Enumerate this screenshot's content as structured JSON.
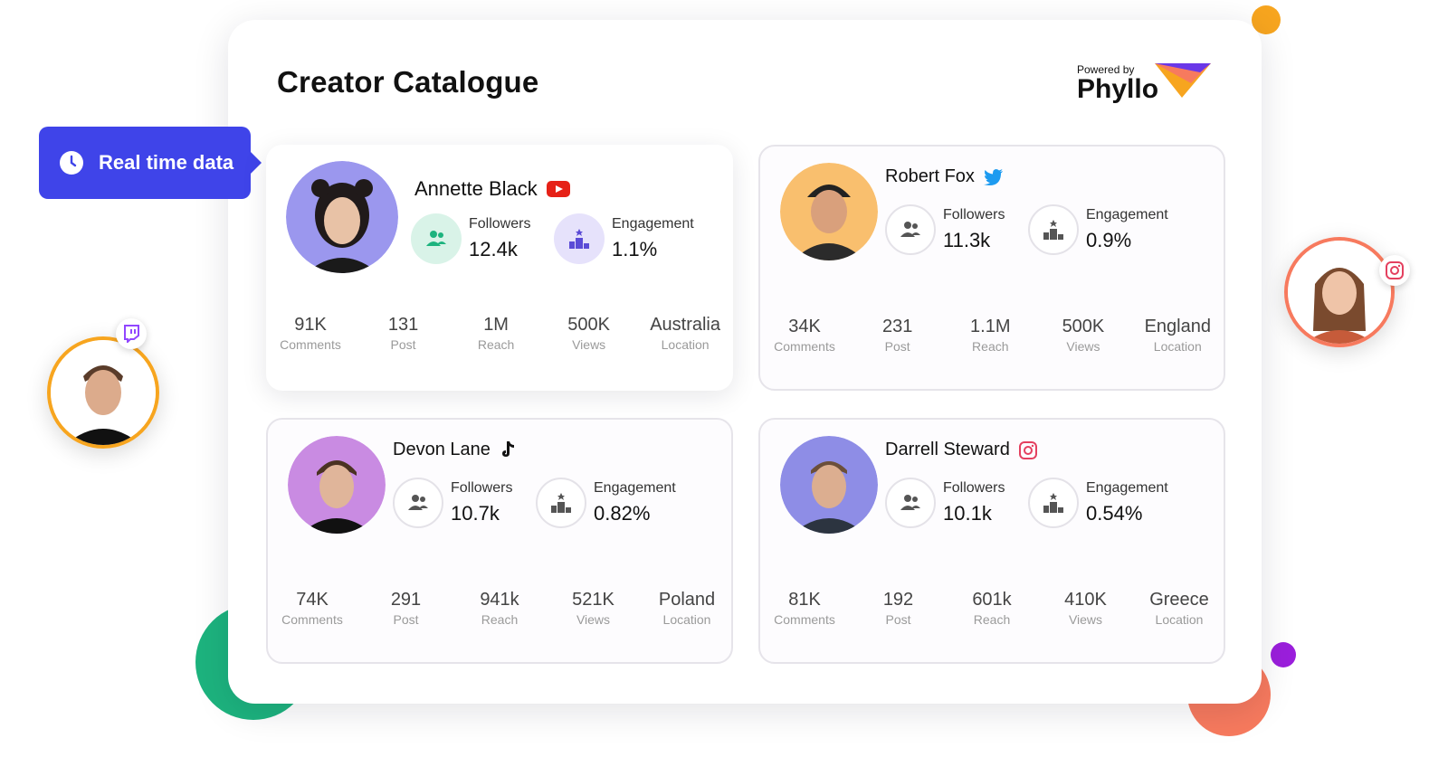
{
  "page": {
    "title": "Creator Catalogue"
  },
  "brand": {
    "powered_by": "Powered by",
    "name": "Phyllo"
  },
  "badge": {
    "label": "Real time data"
  },
  "creators": [
    {
      "name": "Annette Black",
      "platform": "youtube",
      "followers_label": "Followers",
      "followers": "12.4k",
      "engagement_label": "Engagement",
      "engagement": "1.1%",
      "stats": [
        {
          "value": "91K",
          "label": "Comments"
        },
        {
          "value": "131",
          "label": "Post"
        },
        {
          "value": "1M",
          "label": "Reach"
        },
        {
          "value": "500K",
          "label": "Views"
        },
        {
          "value": "Australia",
          "label": "Location"
        }
      ]
    },
    {
      "name": "Robert Fox",
      "platform": "twitter",
      "followers_label": "Followers",
      "followers": "11.3k",
      "engagement_label": "Engagement",
      "engagement": "0.9%",
      "stats": [
        {
          "value": "34K",
          "label": "Comments"
        },
        {
          "value": "231",
          "label": "Post"
        },
        {
          "value": "1.1M",
          "label": "Reach"
        },
        {
          "value": "500K",
          "label": "Views"
        },
        {
          "value": "England",
          "label": "Location"
        }
      ]
    },
    {
      "name": "Devon Lane",
      "platform": "tiktok",
      "followers_label": "Followers",
      "followers": "10.7k",
      "engagement_label": "Engagement",
      "engagement": "0.82%",
      "stats": [
        {
          "value": "74K",
          "label": "Comments"
        },
        {
          "value": "291",
          "label": "Post"
        },
        {
          "value": "941k",
          "label": "Reach"
        },
        {
          "value": "521K",
          "label": "Views"
        },
        {
          "value": "Poland",
          "label": "Location"
        }
      ]
    },
    {
      "name": "Darrell Steward",
      "platform": "instagram",
      "followers_label": "Followers",
      "followers": "10.1k",
      "engagement_label": "Engagement",
      "engagement": "0.54%",
      "stats": [
        {
          "value": "81K",
          "label": "Comments"
        },
        {
          "value": "192",
          "label": "Post"
        },
        {
          "value": "601k",
          "label": "Reach"
        },
        {
          "value": "410K",
          "label": "Views"
        },
        {
          "value": "Greece",
          "label": "Location"
        }
      ]
    }
  ],
  "colors": {
    "accent": "#3f44e9",
    "green": "#1db37e",
    "coral": "#f77a5e",
    "orange": "#f7a51f",
    "purple": "#9b1fdc"
  },
  "icons": {
    "badge": "clock-icon",
    "followers": "users-icon",
    "engagement": "podium-icon",
    "floating_left": "twitch-icon",
    "floating_right": "instagram-icon"
  }
}
